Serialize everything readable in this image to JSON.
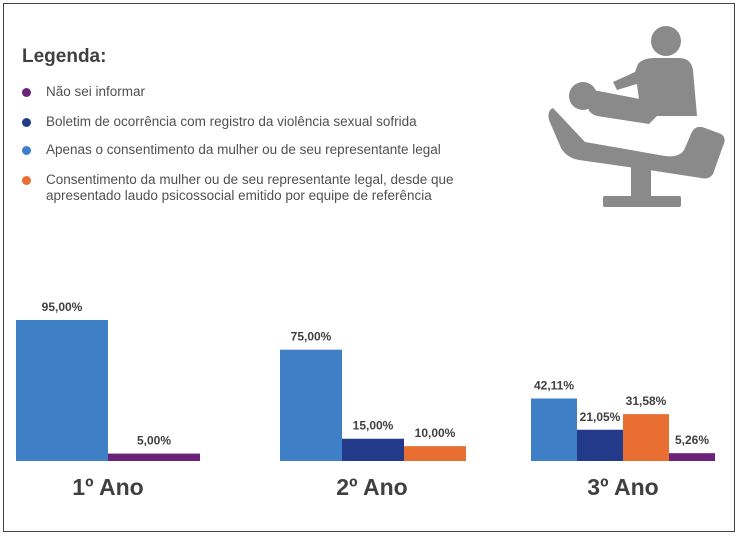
{
  "legend": {
    "title": "Legenda:",
    "items": [
      {
        "label": "Não sei informar",
        "color": "#6a2379"
      },
      {
        "label": "Boletim de ocorrência com registro da violência sexual sofrida",
        "color": "#233a8a"
      },
      {
        "label": "Apenas o consentimento da mulher ou de seu representante legal",
        "color": "#3f7fc5"
      },
      {
        "label": "Consentimento da mulher ou de seu representante legal, desde que apresentado laudo psicossocial emitido por equipe de referência",
        "color": "#e86e32"
      }
    ]
  },
  "icon": "dental-chair-patient-icon",
  "chart_data": {
    "type": "bar",
    "ylim": [
      0,
      100
    ],
    "grid": false,
    "legend_position": "top-left",
    "groups": [
      {
        "label": "1º Ano",
        "bars": [
          {
            "series": "Apenas o consentimento da mulher ou de seu representante legal",
            "value": 95.0,
            "label": "95,00%",
            "color": "#3f7fc5"
          },
          {
            "series": "Não sei informar",
            "value": 5.0,
            "label": "5,00%",
            "color": "#6a2379"
          }
        ]
      },
      {
        "label": "2º Ano",
        "bars": [
          {
            "series": "Apenas o consentimento da mulher ou de seu representante legal",
            "value": 75.0,
            "label": "75,00%",
            "color": "#3f7fc5"
          },
          {
            "series": "Boletim de ocorrência com registro da violência sexual sofrida",
            "value": 15.0,
            "label": "15,00%",
            "color": "#233a8a"
          },
          {
            "series": "Consentimento da mulher ou de seu representante legal, desde que apresentado laudo psicossocial emitido por equipe de referência",
            "value": 10.0,
            "label": "10,00%",
            "color": "#e86e32"
          }
        ]
      },
      {
        "label": "3º Ano",
        "bars": [
          {
            "series": "Apenas o consentimento da mulher ou de seu representante legal",
            "value": 42.11,
            "label": "42,11%",
            "color": "#3f7fc5"
          },
          {
            "series": "Boletim de ocorrência com registro da violência sexual sofrida",
            "value": 21.05,
            "label": "21,05%",
            "color": "#233a8a"
          },
          {
            "series": "Consentimento da mulher ou de seu representante legal, desde que apresentado laudo psicossocial emitido por equipe de referência",
            "value": 31.58,
            "label": "31,58%",
            "color": "#e86e32"
          },
          {
            "series": "Não sei informar",
            "value": 5.26,
            "label": "5,26%",
            "color": "#6a2379"
          }
        ]
      }
    ]
  }
}
